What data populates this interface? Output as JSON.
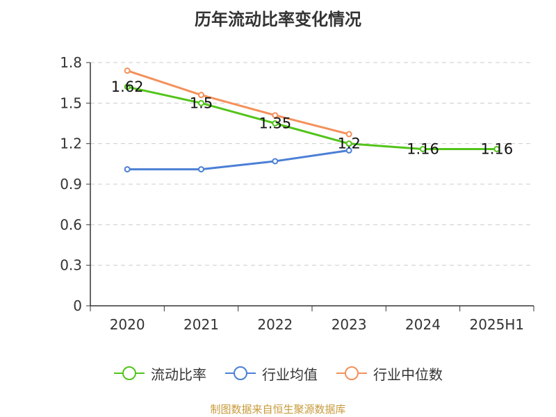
{
  "chart_data": {
    "type": "line",
    "title": "历年流动比率变化情况",
    "categories": [
      "2020",
      "2021",
      "2022",
      "2023",
      "2024",
      "2025H1"
    ],
    "ylim": [
      0,
      1.8
    ],
    "yticks": [
      "0",
      "0.3",
      "0.6",
      "0.9",
      "1.2",
      "1.5",
      "1.8"
    ],
    "grid": true,
    "legend_position": "bottom",
    "series": [
      {
        "name": "流动比率",
        "color": "#52c41a",
        "values": [
          1.62,
          1.5,
          1.35,
          1.2,
          1.16,
          1.16
        ],
        "labels": [
          "1.62",
          "1.5",
          "1.35",
          "1.2",
          "1.16",
          "1.16"
        ]
      },
      {
        "name": "行业均值",
        "color": "#4a7fd6",
        "values": [
          1.01,
          1.01,
          1.07,
          1.15,
          null,
          null
        ]
      },
      {
        "name": "行业中位数",
        "color": "#f4905a",
        "values": [
          1.74,
          1.56,
          1.41,
          1.27,
          null,
          null
        ]
      }
    ]
  },
  "source": "制图数据来自恒生聚源数据库"
}
